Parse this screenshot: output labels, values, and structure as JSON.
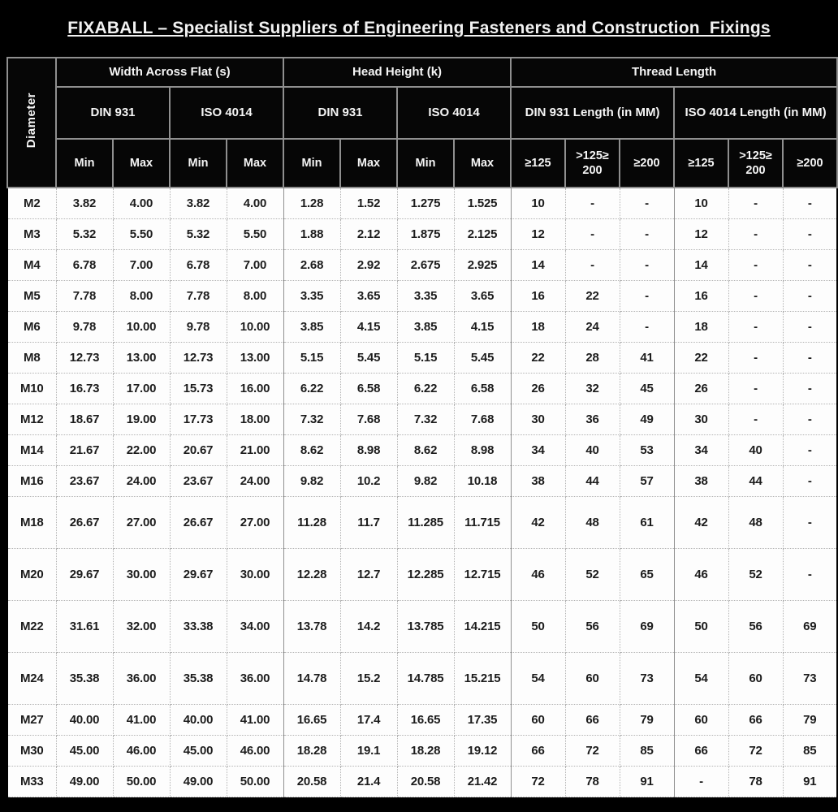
{
  "title": "FIXABALL – Specialist Suppliers of Engineering Fasteners and Construction  Fixings",
  "table": {
    "header": {
      "diameter": "Diameter",
      "group_waf": "Width Across Flat (s)",
      "group_hh": "Head Height (k)",
      "group_tl": "Thread Length",
      "subgroups": [
        "DIN 931",
        "ISO 4014",
        "DIN 931",
        "ISO 4014",
        "DIN 931 Length (in MM)",
        "ISO 4014 Length (in MM)"
      ],
      "cols": [
        "Min",
        "Max",
        "Min",
        "Max",
        "Min",
        "Max",
        "Min",
        "Max",
        "≥125",
        ">125≥ 200",
        "≥200",
        "≥125",
        ">125≥ 200",
        "≥200"
      ]
    },
    "rows": [
      {
        "size": "M2",
        "tall": false,
        "values": [
          "3.82",
          "4.00",
          "3.82",
          "4.00",
          "1.28",
          "1.52",
          "1.275",
          "1.525",
          "10",
          "-",
          "-",
          "10",
          "-",
          "-"
        ]
      },
      {
        "size": "M3",
        "tall": false,
        "values": [
          "5.32",
          "5.50",
          "5.32",
          "5.50",
          "1.88",
          "2.12",
          "1.875",
          "2.125",
          "12",
          "-",
          "-",
          "12",
          "-",
          "-"
        ]
      },
      {
        "size": "M4",
        "tall": false,
        "values": [
          "6.78",
          "7.00",
          "6.78",
          "7.00",
          "2.68",
          "2.92",
          "2.675",
          "2.925",
          "14",
          "-",
          "-",
          "14",
          "-",
          "-"
        ]
      },
      {
        "size": "M5",
        "tall": false,
        "values": [
          "7.78",
          "8.00",
          "7.78",
          "8.00",
          "3.35",
          "3.65",
          "3.35",
          "3.65",
          "16",
          "22",
          "-",
          "16",
          "-",
          "-"
        ]
      },
      {
        "size": "M6",
        "tall": false,
        "values": [
          "9.78",
          "10.00",
          "9.78",
          "10.00",
          "3.85",
          "4.15",
          "3.85",
          "4.15",
          "18",
          "24",
          "-",
          "18",
          "-",
          "-"
        ]
      },
      {
        "size": "M8",
        "tall": false,
        "values": [
          "12.73",
          "13.00",
          "12.73",
          "13.00",
          "5.15",
          "5.45",
          "5.15",
          "5.45",
          "22",
          "28",
          "41",
          "22",
          "-",
          "-"
        ]
      },
      {
        "size": "M10",
        "tall": false,
        "values": [
          "16.73",
          "17.00",
          "15.73",
          "16.00",
          "6.22",
          "6.58",
          "6.22",
          "6.58",
          "26",
          "32",
          "45",
          "26",
          "-",
          "-"
        ]
      },
      {
        "size": "M12",
        "tall": false,
        "values": [
          "18.67",
          "19.00",
          "17.73",
          "18.00",
          "7.32",
          "7.68",
          "7.32",
          "7.68",
          "30",
          "36",
          "49",
          "30",
          "-",
          "-"
        ]
      },
      {
        "size": "M14",
        "tall": false,
        "values": [
          "21.67",
          "22.00",
          "20.67",
          "21.00",
          "8.62",
          "8.98",
          "8.62",
          "8.98",
          "34",
          "40",
          "53",
          "34",
          "40",
          "-"
        ]
      },
      {
        "size": "M16",
        "tall": false,
        "values": [
          "23.67",
          "24.00",
          "23.67",
          "24.00",
          "9.82",
          "10.2",
          "9.82",
          "10.18",
          "38",
          "44",
          "57",
          "38",
          "44",
          "-"
        ]
      },
      {
        "size": "M18",
        "tall": true,
        "values": [
          "26.67",
          "27.00",
          "26.67",
          "27.00",
          "11.28",
          "11.7",
          "11.285",
          "11.715",
          "42",
          "48",
          "61",
          "42",
          "48",
          "-"
        ]
      },
      {
        "size": "M20",
        "tall": true,
        "values": [
          "29.67",
          "30.00",
          "29.67",
          "30.00",
          "12.28",
          "12.7",
          "12.285",
          "12.715",
          "46",
          "52",
          "65",
          "46",
          "52",
          "-"
        ]
      },
      {
        "size": "M22",
        "tall": true,
        "values": [
          "31.61",
          "32.00",
          "33.38",
          "34.00",
          "13.78",
          "14.2",
          "13.785",
          "14.215",
          "50",
          "56",
          "69",
          "50",
          "56",
          "69"
        ]
      },
      {
        "size": "M24",
        "tall": true,
        "values": [
          "35.38",
          "36.00",
          "35.38",
          "36.00",
          "14.78",
          "15.2",
          "14.785",
          "15.215",
          "54",
          "60",
          "73",
          "54",
          "60",
          "73"
        ]
      },
      {
        "size": "M27",
        "tall": false,
        "values": [
          "40.00",
          "41.00",
          "40.00",
          "41.00",
          "16.65",
          "17.4",
          "16.65",
          "17.35",
          "60",
          "66",
          "79",
          "60",
          "66",
          "79"
        ]
      },
      {
        "size": "M30",
        "tall": false,
        "values": [
          "45.00",
          "46.00",
          "45.00",
          "46.00",
          "18.28",
          "19.1",
          "18.28",
          "19.12",
          "66",
          "72",
          "85",
          "66",
          "72",
          "85"
        ]
      },
      {
        "size": "M33",
        "tall": false,
        "values": [
          "49.00",
          "50.00",
          "49.00",
          "50.00",
          "20.58",
          "21.4",
          "20.58",
          "21.42",
          "72",
          "78",
          "91",
          "-",
          "78",
          "91"
        ]
      }
    ]
  }
}
